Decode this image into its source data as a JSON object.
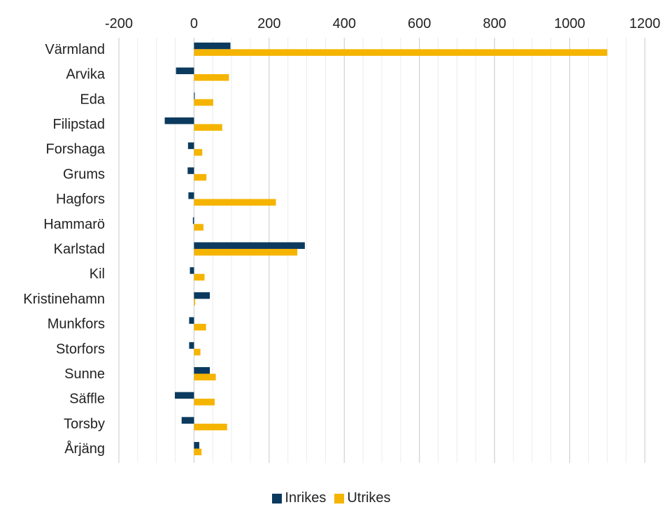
{
  "chart_data": {
    "type": "bar",
    "orientation": "horizontal",
    "categories": [
      "Värmland",
      "Arvika",
      "Eda",
      "Filipstad",
      "Forshaga",
      "Grums",
      "Hagfors",
      "Hammarö",
      "Karlstad",
      "Kil",
      "Kristinehamn",
      "Munkfors",
      "Storfors",
      "Sunne",
      "Säffle",
      "Torsby",
      "Årjäng"
    ],
    "series": [
      {
        "name": "Inrikes",
        "color": "#0b3a5e",
        "values": [
          97,
          -48,
          2,
          -78,
          -16,
          -17,
          -15,
          -3,
          295,
          -11,
          42,
          -13,
          -13,
          42,
          -51,
          -33,
          14
        ]
      },
      {
        "name": "Utrikes",
        "color": "#f5b400",
        "values": [
          1100,
          93,
          51,
          75,
          22,
          33,
          218,
          25,
          275,
          28,
          3,
          32,
          17,
          58,
          55,
          88,
          20
        ]
      }
    ],
    "xlim": [
      -200,
      1200
    ],
    "xticks": [
      -200,
      0,
      200,
      400,
      600,
      800,
      1000,
      1200
    ],
    "tick_labels": [
      "-200",
      "0",
      "200",
      "400",
      "600",
      "800",
      "1000",
      "1200"
    ],
    "grid": true,
    "legend_position": "bottom",
    "title": "",
    "xlabel": "",
    "ylabel": ""
  }
}
